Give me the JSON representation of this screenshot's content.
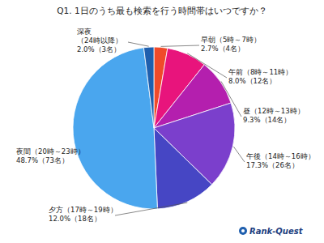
{
  "chart_data": {
    "type": "pie",
    "title": "Q1. 1日のうち最も検索を行う時間帯はいつですか？",
    "categories": [
      "早朝（5時～7時）",
      "午前（8時～11時）",
      "昼（12時～13時）",
      "午後（14時～16時）",
      "夕方（17時～19時）",
      "夜間（20時～23時）",
      "深夜（24時以降）"
    ],
    "values": [
      2.7,
      8.0,
      9.3,
      17.3,
      12.0,
      48.7,
      2.0
    ],
    "value_labels": [
      "2.7%（4名）",
      "8.0%（12名）",
      "9.3%（14名）",
      "17.3%（26名）",
      "12.0%（18名）",
      "48.7%（73名）",
      "2.0%（3名）"
    ],
    "colors": [
      "#f04a2a",
      "#e8147c",
      "#b41fae",
      "#7b3fcc",
      "#4646c4",
      "#4aa6ee",
      "#1f5fae"
    ],
    "data_labels": true,
    "annotations": [
      "Rank-Quest"
    ]
  }
}
